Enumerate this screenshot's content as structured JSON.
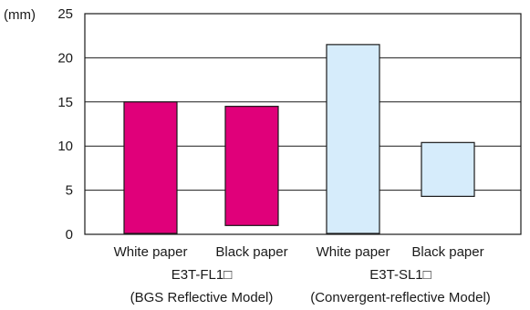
{
  "chart_data": {
    "type": "bar",
    "floating": true,
    "ylabel": "(mm)",
    "ylim": [
      0,
      25
    ],
    "yticks": [
      0,
      5,
      10,
      15,
      20,
      25
    ],
    "grid": true,
    "categories": [
      "White paper",
      "Black paper",
      "White paper",
      "Black paper"
    ],
    "bars": [
      {
        "category": "White paper",
        "group": 0,
        "low": 0.1,
        "high": 15.0,
        "color": "#e0007a"
      },
      {
        "category": "Black paper",
        "group": 0,
        "low": 1.0,
        "high": 14.5,
        "color": "#e0007a"
      },
      {
        "category": "White paper",
        "group": 1,
        "low": 0.1,
        "high": 21.5,
        "color": "#d6ecfb"
      },
      {
        "category": "Black paper",
        "group": 1,
        "low": 4.3,
        "high": 10.4,
        "color": "#d6ecfb"
      }
    ],
    "groups": [
      {
        "model": "E3T-FL1□",
        "description": "(BGS Reflective Model)"
      },
      {
        "model": "E3T-SL1□",
        "description": "(Convergent-reflective Model)"
      }
    ]
  }
}
